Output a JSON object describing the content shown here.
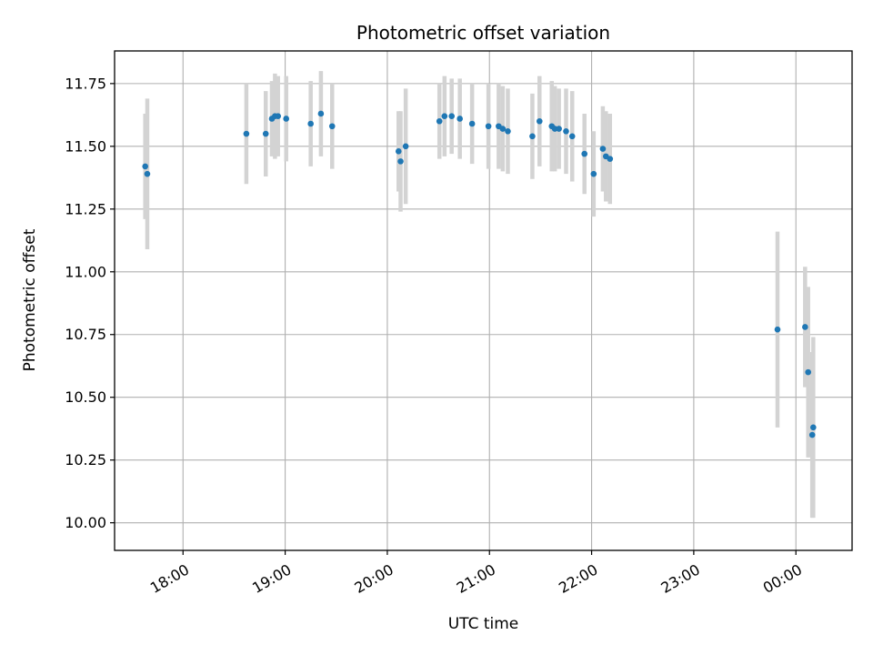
{
  "chart_data": {
    "type": "scatter",
    "title": "Photometric offset variation",
    "xlabel": "UTC time",
    "ylabel": "Photometric offset",
    "x_unit": "hours since 00:00 of first night (UTC); values above 24 fall after midnight",
    "xlim": [
      17.33,
      24.55
    ],
    "ylim": [
      9.89,
      11.88
    ],
    "grid": true,
    "x_ticks": [
      {
        "value": 18,
        "label": "18:00"
      },
      {
        "value": 19,
        "label": "19:00"
      },
      {
        "value": 20,
        "label": "20:00"
      },
      {
        "value": 21,
        "label": "21:00"
      },
      {
        "value": 22,
        "label": "22:00"
      },
      {
        "value": 23,
        "label": "23:00"
      },
      {
        "value": 24,
        "label": "00:00"
      }
    ],
    "y_ticks": [
      {
        "value": 10.0,
        "label": "10.00"
      },
      {
        "value": 10.25,
        "label": "10.25"
      },
      {
        "value": 10.5,
        "label": "10.50"
      },
      {
        "value": 10.75,
        "label": "10.75"
      },
      {
        "value": 11.0,
        "label": "11.00"
      },
      {
        "value": 11.25,
        "label": "11.25"
      },
      {
        "value": 11.5,
        "label": "11.50"
      },
      {
        "value": 11.75,
        "label": "11.75"
      }
    ],
    "point_color": "#1f77b4",
    "errorbar_color": "#d3d3d3",
    "points": [
      {
        "x": 17.63,
        "y": 11.42,
        "err": 0.21
      },
      {
        "x": 17.65,
        "y": 11.39,
        "err": 0.3
      },
      {
        "x": 18.62,
        "y": 11.55,
        "err": 0.2
      },
      {
        "x": 18.81,
        "y": 11.55,
        "err": 0.17
      },
      {
        "x": 18.87,
        "y": 11.61,
        "err": 0.15
      },
      {
        "x": 18.9,
        "y": 11.62,
        "err": 0.17
      },
      {
        "x": 18.93,
        "y": 11.62,
        "err": 0.16
      },
      {
        "x": 19.01,
        "y": 11.61,
        "err": 0.17
      },
      {
        "x": 19.25,
        "y": 11.59,
        "err": 0.17
      },
      {
        "x": 19.35,
        "y": 11.63,
        "err": 0.17
      },
      {
        "x": 19.46,
        "y": 11.58,
        "err": 0.17
      },
      {
        "x": 20.11,
        "y": 11.48,
        "err": 0.16
      },
      {
        "x": 20.13,
        "y": 11.44,
        "err": 0.2
      },
      {
        "x": 20.18,
        "y": 11.5,
        "err": 0.23
      },
      {
        "x": 20.51,
        "y": 11.6,
        "err": 0.15
      },
      {
        "x": 20.56,
        "y": 11.62,
        "err": 0.16
      },
      {
        "x": 20.63,
        "y": 11.62,
        "err": 0.15
      },
      {
        "x": 20.71,
        "y": 11.61,
        "err": 0.16
      },
      {
        "x": 20.83,
        "y": 11.59,
        "err": 0.16
      },
      {
        "x": 20.99,
        "y": 11.58,
        "err": 0.17
      },
      {
        "x": 21.09,
        "y": 11.58,
        "err": 0.17
      },
      {
        "x": 21.13,
        "y": 11.57,
        "err": 0.17
      },
      {
        "x": 21.18,
        "y": 11.56,
        "err": 0.17
      },
      {
        "x": 21.42,
        "y": 11.54,
        "err": 0.17
      },
      {
        "x": 21.49,
        "y": 11.6,
        "err": 0.18
      },
      {
        "x": 21.61,
        "y": 11.58,
        "err": 0.18
      },
      {
        "x": 21.64,
        "y": 11.57,
        "err": 0.17
      },
      {
        "x": 21.68,
        "y": 11.57,
        "err": 0.16
      },
      {
        "x": 21.75,
        "y": 11.56,
        "err": 0.17
      },
      {
        "x": 21.81,
        "y": 11.54,
        "err": 0.18
      },
      {
        "x": 21.93,
        "y": 11.47,
        "err": 0.16
      },
      {
        "x": 22.02,
        "y": 11.39,
        "err": 0.17
      },
      {
        "x": 22.11,
        "y": 11.49,
        "err": 0.17
      },
      {
        "x": 22.14,
        "y": 11.46,
        "err": 0.18
      },
      {
        "x": 22.18,
        "y": 11.45,
        "err": 0.18
      },
      {
        "x": 23.82,
        "y": 10.77,
        "err": 0.39
      },
      {
        "x": 24.09,
        "y": 10.78,
        "err": 0.24
      },
      {
        "x": 24.12,
        "y": 10.6,
        "err": 0.34
      },
      {
        "x": 24.16,
        "y": 10.35,
        "err": 0.33
      },
      {
        "x": 24.17,
        "y": 10.38,
        "err": 0.36
      }
    ]
  }
}
